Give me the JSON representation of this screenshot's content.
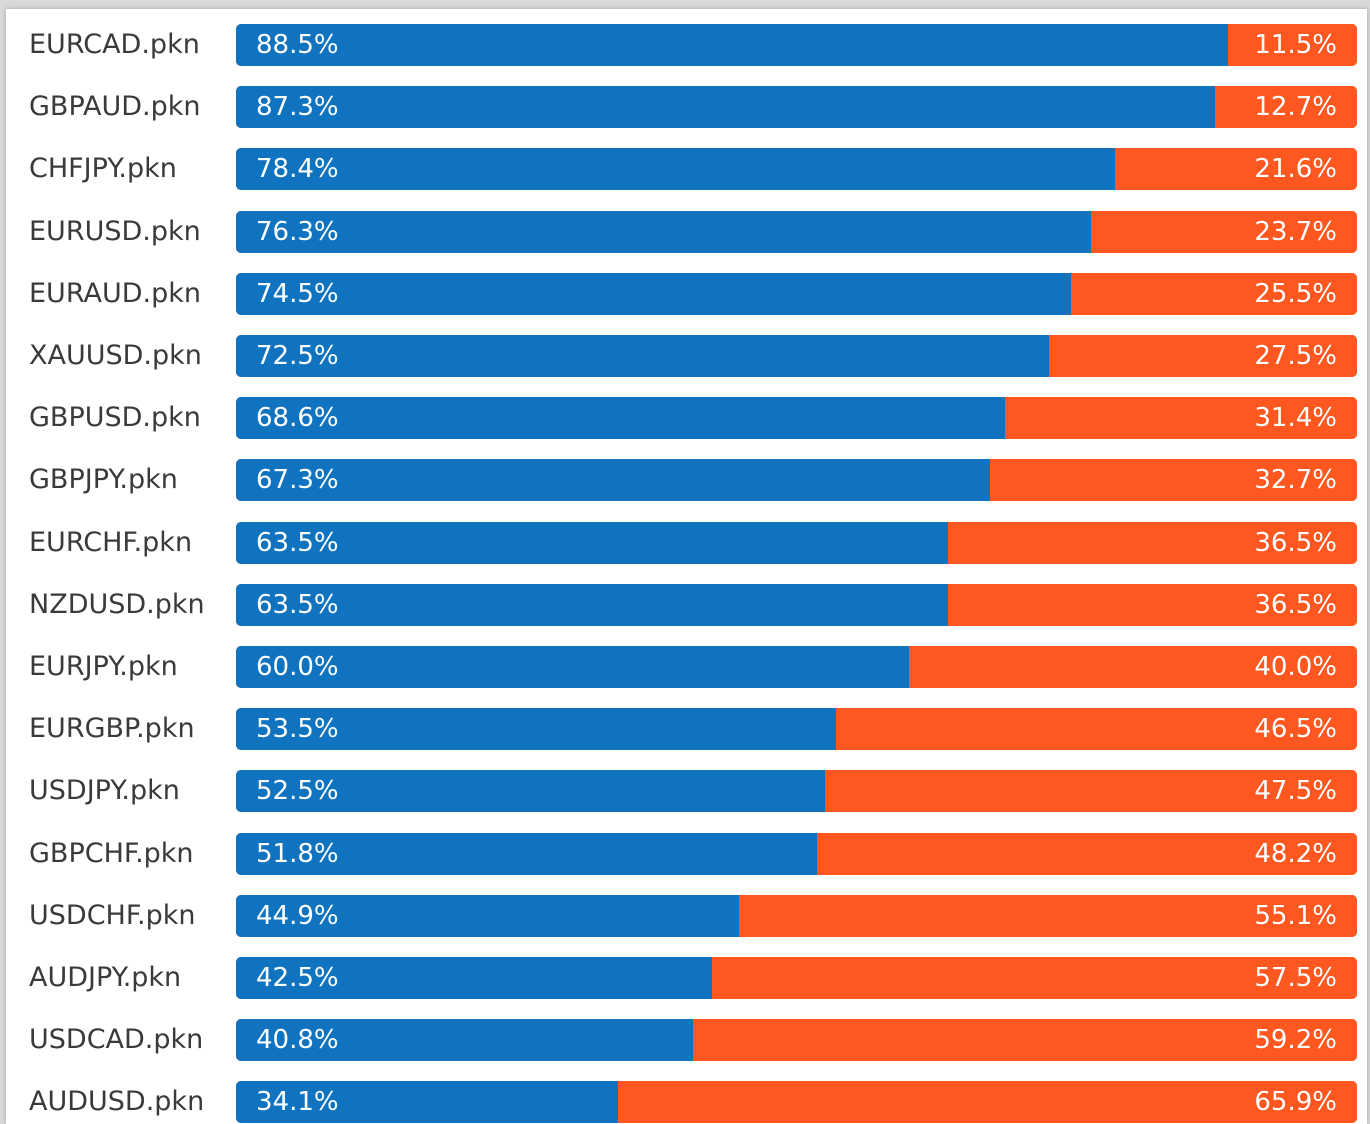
{
  "colors": {
    "long": "#1073c0",
    "short": "#fe5820",
    "label": "#3a3a3a",
    "value_text": "#ffffff"
  },
  "chart_data": {
    "type": "bar",
    "orientation": "horizontal",
    "stacked": true,
    "categories": [
      "EURCAD.pkn",
      "GBPAUD.pkn",
      "CHFJPY.pkn",
      "EURUSD.pkn",
      "EURAUD.pkn",
      "XAUUSD.pkn",
      "GBPUSD.pkn",
      "GBPJPY.pkn",
      "EURCHF.pkn",
      "NZDUSD.pkn",
      "EURJPY.pkn",
      "EURGBP.pkn",
      "USDJPY.pkn",
      "GBPCHF.pkn",
      "USDCHF.pkn",
      "AUDJPY.pkn",
      "USDCAD.pkn",
      "AUDUSD.pkn"
    ],
    "series": [
      {
        "color": "#1073c0",
        "values": [
          88.5,
          87.3,
          78.4,
          76.3,
          74.5,
          72.5,
          68.6,
          67.3,
          63.5,
          63.5,
          60.0,
          53.5,
          52.5,
          51.8,
          44.9,
          42.5,
          40.8,
          34.1
        ],
        "labels": [
          "88.5%",
          "87.3%",
          "78.4%",
          "76.3%",
          "74.5%",
          "72.5%",
          "68.6%",
          "67.3%",
          "63.5%",
          "63.5%",
          "60.0%",
          "53.5%",
          "52.5%",
          "51.8%",
          "44.9%",
          "42.5%",
          "40.8%",
          "34.1%"
        ]
      },
      {
        "color": "#fe5820",
        "values": [
          11.5,
          12.7,
          21.6,
          23.7,
          25.5,
          27.5,
          31.4,
          32.7,
          36.5,
          36.5,
          40.0,
          46.5,
          47.5,
          48.2,
          55.1,
          57.5,
          59.2,
          65.9
        ],
        "labels": [
          "11.5%",
          "12.7%",
          "21.6%",
          "23.7%",
          "25.5%",
          "27.5%",
          "31.4%",
          "32.7%",
          "36.5%",
          "36.5%",
          "40.0%",
          "46.5%",
          "47.5%",
          "48.2%",
          "55.1%",
          "57.5%",
          "59.2%",
          "65.9%"
        ]
      }
    ],
    "xlim": [
      0,
      100
    ],
    "grid": false,
    "legend": "none"
  }
}
